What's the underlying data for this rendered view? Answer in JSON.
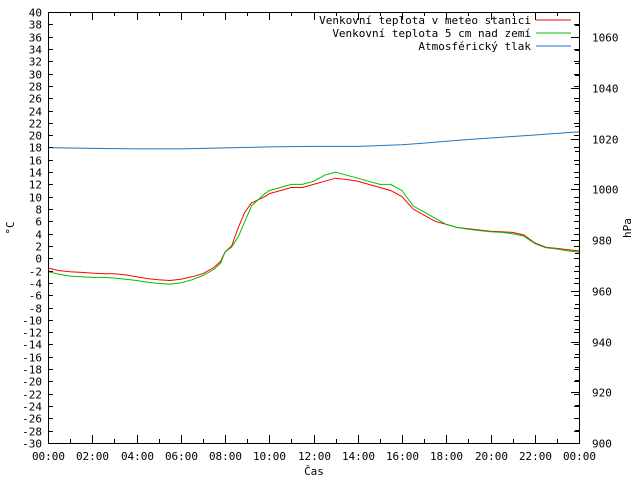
{
  "chart_data": {
    "type": "line",
    "title": "",
    "xlabel": "Čas",
    "ylabel_left": "°C",
    "ylabel_right": "hPa",
    "ylim_left": [
      -30,
      40
    ],
    "ylim_right": [
      900,
      1070
    ],
    "xlim_hours": [
      0,
      24
    ],
    "x_tick_labels": [
      "00:00",
      "02:00",
      "04:00",
      "06:00",
      "08:00",
      "10:00",
      "12:00",
      "14:00",
      "16:00",
      "18:00",
      "20:00",
      "22:00",
      "00:00"
    ],
    "y_left_ticks": [
      40,
      38,
      36,
      34,
      32,
      30,
      28,
      26,
      24,
      22,
      20,
      18,
      16,
      14,
      12,
      10,
      8,
      6,
      4,
      2,
      0,
      -2,
      -4,
      -6,
      -8,
      -10,
      -12,
      -14,
      -16,
      -18,
      -20,
      -22,
      -24,
      -26,
      -28,
      -30
    ],
    "y_right_ticks": [
      1060,
      1040,
      1020,
      1000,
      980,
      960,
      940,
      920,
      900
    ],
    "legend_position": "top-right",
    "grid": false,
    "series": [
      {
        "name": "Venkovní teplota v meteo stanici",
        "color": "#ff0000",
        "axis": "left",
        "x": [
          0,
          0.5,
          1,
          1.5,
          2,
          2.5,
          3,
          3.5,
          4,
          4.5,
          5,
          5.5,
          6,
          6.5,
          7,
          7.5,
          7.8,
          8,
          8.3,
          8.6,
          8.9,
          9.2,
          9.5,
          9.8,
          10,
          10.5,
          11,
          11.5,
          12,
          12.5,
          13,
          13.5,
          14,
          14.5,
          15,
          15.5,
          16,
          16.5,
          17,
          17.5,
          18,
          18.5,
          19,
          19.5,
          20,
          20.5,
          21,
          21.5,
          22,
          22.5,
          23,
          23.5,
          24
        ],
        "y": [
          -1.6,
          -2,
          -2.2,
          -2.3,
          -2.4,
          -2.5,
          -2.5,
          -2.7,
          -3,
          -3.3,
          -3.5,
          -3.6,
          -3.4,
          -3,
          -2.5,
          -1.5,
          -0.5,
          1,
          2,
          5,
          7.5,
          9,
          9.5,
          10,
          10.5,
          11,
          11.5,
          11.5,
          12,
          12.5,
          13,
          12.8,
          12.5,
          12,
          11.5,
          11,
          10,
          8,
          7,
          6,
          5.5,
          5,
          4.8,
          4.6,
          4.4,
          4.3,
          4.2,
          3.8,
          2.5,
          1.8,
          1.6,
          1.4,
          1.2
        ]
      },
      {
        "name": "Venkovní teplota 5 cm nad zemí",
        "color": "#00c000",
        "axis": "left",
        "x": [
          0,
          0.5,
          1,
          1.5,
          2,
          2.5,
          3,
          3.5,
          4,
          4.5,
          5,
          5.5,
          6,
          6.5,
          7,
          7.5,
          7.8,
          8,
          8.3,
          8.6,
          8.9,
          9.2,
          9.5,
          9.8,
          10,
          10.5,
          11,
          11.5,
          12,
          12.5,
          13,
          13.5,
          14,
          14.5,
          15,
          15.5,
          16,
          16.5,
          17,
          17.5,
          18,
          18.5,
          19,
          19.5,
          20,
          20.5,
          21,
          21.5,
          22,
          22.5,
          23,
          23.5,
          24
        ],
        "y": [
          -2.2,
          -2.6,
          -2.9,
          -3,
          -3.1,
          -3.1,
          -3.2,
          -3.4,
          -3.6,
          -3.9,
          -4.1,
          -4.2,
          -4,
          -3.5,
          -2.8,
          -1.8,
          -0.8,
          1,
          1.8,
          3.5,
          6,
          8.5,
          9.5,
          10.5,
          11,
          11.5,
          12,
          12,
          12.5,
          13.5,
          14,
          13.5,
          13,
          12.5,
          12,
          12,
          11,
          8.5,
          7.5,
          6.5,
          5.5,
          5,
          4.7,
          4.5,
          4.3,
          4.2,
          4,
          3.6,
          2.4,
          1.7,
          1.5,
          1.2,
          1
        ]
      },
      {
        "name": "Atmosférický tlak",
        "color": "#1e78c8",
        "axis": "right",
        "x": [
          0,
          2,
          4,
          6,
          8,
          10,
          12,
          14,
          16,
          17,
          18,
          19,
          20,
          21,
          22,
          23,
          24
        ],
        "y": [
          1016.5,
          1016.2,
          1016,
          1016,
          1016.4,
          1016.8,
          1017,
          1017,
          1017.6,
          1018.3,
          1019,
          1019.7,
          1020.3,
          1020.9,
          1021.5,
          1022.1,
          1022.7
        ]
      }
    ]
  }
}
